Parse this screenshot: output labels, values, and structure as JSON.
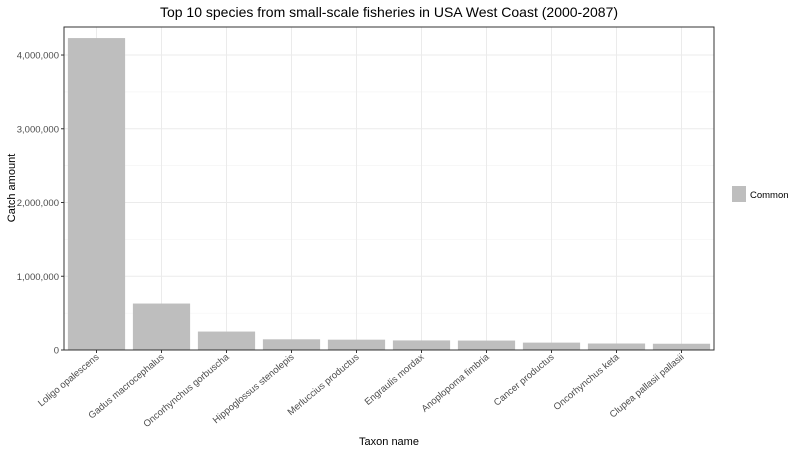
{
  "chart_data": {
    "type": "bar",
    "title": "Top 10 species from small-scale fisheries in USA West Coast (2000-2087)",
    "xlabel": "Taxon name",
    "ylabel": "Catch amount",
    "categories": [
      "Loligo opalescens",
      "Gadus macrocephalus",
      "Oncorhynchus gorbuscha",
      "Hippoglossus stenolepis",
      "Merluccius productus",
      "Engraulis mordax",
      "Anoplopoma fimbria",
      "Cancer productus",
      "Oncorhynchus keta",
      "Clupea pallasii pallasii"
    ],
    "series": [
      {
        "name": "Common",
        "values": [
          4230000,
          630000,
          250000,
          145000,
          140000,
          130000,
          128000,
          100000,
          88000,
          85000
        ]
      }
    ],
    "ylim": [
      0,
      4380000
    ],
    "yticks": [
      0,
      1000000,
      2000000,
      3000000,
      4000000
    ],
    "ytick_labels": [
      "0",
      "1,000,000",
      "2,000,000",
      "3,000,000",
      "4,000,000"
    ],
    "grid": true,
    "legend": "right",
    "bar_color": "#bebebe"
  }
}
